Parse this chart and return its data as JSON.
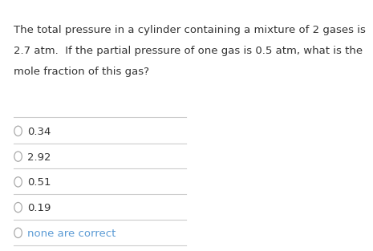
{
  "question_lines": [
    "The total pressure in a cylinder containing a mixture of 2 gases is",
    "2.7 atm.  If the partial pressure of one gas is 0.5 atm, what is the",
    "mole fraction of this gas?"
  ],
  "options": [
    "0.34",
    "2.92",
    "0.51",
    "0.19",
    "none are correct"
  ],
  "background_color": "#ffffff",
  "question_color": "#333333",
  "option_color": "#333333",
  "last_option_color": "#5b9bd5",
  "line_color": "#cccccc",
  "question_fontsize": 9.5,
  "option_fontsize": 9.5,
  "fig_width": 3.81,
  "fig_height": 2.94
}
